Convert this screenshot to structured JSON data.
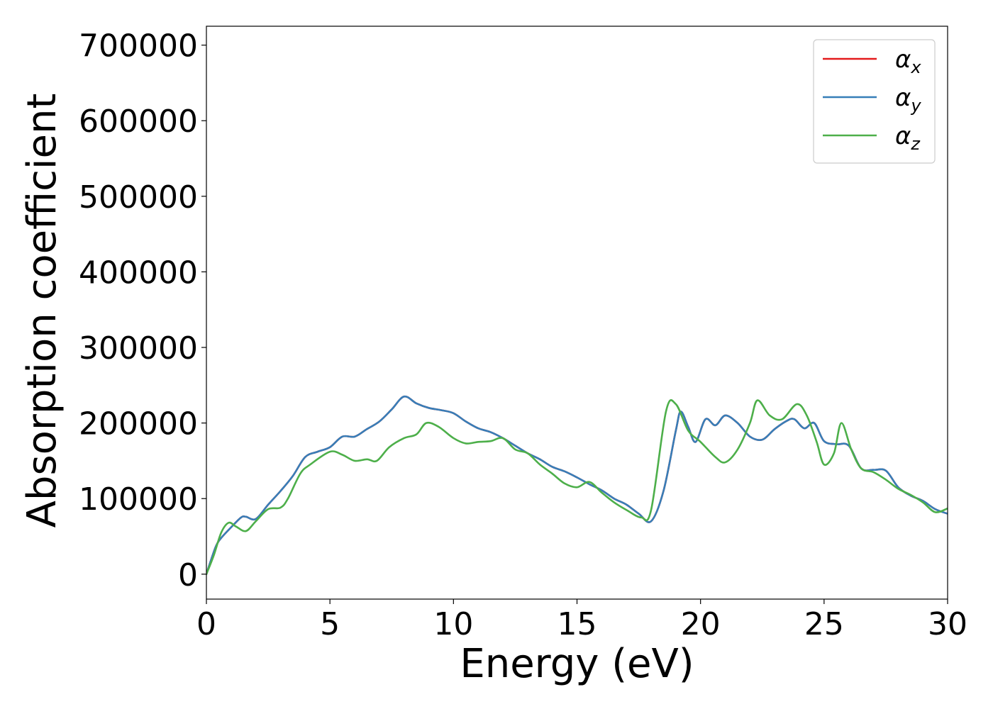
{
  "chart_data": {
    "type": "line",
    "xlabel": "Energy (eV)",
    "ylabel": "Absorption coefficient",
    "xlim": [
      0,
      30
    ],
    "ylim": [
      -33000,
      725000
    ],
    "xticks": [
      0,
      5,
      10,
      15,
      20,
      25,
      30
    ],
    "yticks": [
      0,
      100000,
      200000,
      300000,
      400000,
      500000,
      600000,
      700000
    ],
    "grid": false,
    "legend_position": "top-right",
    "series": [
      {
        "name": "α",
        "subscript": "x",
        "color": "#e41a1c",
        "x": [
          0,
          0.2,
          0.4,
          0.6,
          1.0,
          1.4,
          1.6,
          2.0,
          2.5,
          3.0,
          3.5,
          4.0,
          4.5,
          5.0,
          5.5,
          6.0,
          6.5,
          7.0,
          7.5,
          8.0,
          8.5,
          9.0,
          9.5,
          10.0,
          10.5,
          11.0,
          11.5,
          12.0,
          12.5,
          13.0,
          13.5,
          14.0,
          14.5,
          15.0,
          15.5,
          16.0,
          16.5,
          17.0,
          17.5,
          18.0,
          18.5,
          19.0,
          19.2,
          19.5,
          19.8,
          20.2,
          20.6,
          21.0,
          21.5,
          22.0,
          22.5,
          23.0,
          23.5,
          23.8,
          24.2,
          24.6,
          25.0,
          25.5,
          26.0,
          26.5,
          27.0,
          27.5,
          28.0,
          28.5,
          29.0,
          29.5,
          30.0
        ],
        "y": [
          0,
          20000,
          38000,
          48000,
          62000,
          75000,
          76000,
          73000,
          92000,
          110000,
          130000,
          155000,
          162000,
          168000,
          182000,
          182000,
          192000,
          202000,
          218000,
          235000,
          226000,
          220000,
          217000,
          213000,
          202000,
          193000,
          188000,
          180000,
          170000,
          160000,
          152000,
          142000,
          136000,
          128000,
          119000,
          111000,
          100000,
          92000,
          80000,
          70000,
          110000,
          190000,
          215000,
          195000,
          175000,
          205000,
          197000,
          210000,
          200000,
          182000,
          178000,
          192000,
          203000,
          205000,
          193000,
          200000,
          176000,
          172000,
          170000,
          140000,
          138000,
          137000,
          115000,
          104000,
          97000,
          86000,
          80000
        ]
      },
      {
        "name": "α",
        "subscript": "y",
        "color": "#377eb8",
        "x": [
          0,
          0.2,
          0.4,
          0.6,
          1.0,
          1.4,
          1.6,
          2.0,
          2.5,
          3.0,
          3.5,
          4.0,
          4.5,
          5.0,
          5.5,
          6.0,
          6.5,
          7.0,
          7.5,
          8.0,
          8.5,
          9.0,
          9.5,
          10.0,
          10.5,
          11.0,
          11.5,
          12.0,
          12.5,
          13.0,
          13.5,
          14.0,
          14.5,
          15.0,
          15.5,
          16.0,
          16.5,
          17.0,
          17.5,
          18.0,
          18.5,
          19.0,
          19.2,
          19.5,
          19.8,
          20.2,
          20.6,
          21.0,
          21.5,
          22.0,
          22.5,
          23.0,
          23.5,
          23.8,
          24.2,
          24.6,
          25.0,
          25.5,
          26.0,
          26.5,
          27.0,
          27.5,
          28.0,
          28.5,
          29.0,
          29.5,
          30.0
        ],
        "y": [
          0,
          20000,
          38000,
          48000,
          62000,
          75000,
          76000,
          73000,
          92000,
          110000,
          130000,
          155000,
          162000,
          168000,
          182000,
          182000,
          192000,
          202000,
          218000,
          235000,
          226000,
          220000,
          217000,
          213000,
          202000,
          193000,
          188000,
          180000,
          170000,
          160000,
          152000,
          142000,
          136000,
          128000,
          119000,
          111000,
          100000,
          92000,
          80000,
          70000,
          110000,
          190000,
          215000,
          195000,
          175000,
          205000,
          197000,
          210000,
          200000,
          182000,
          178000,
          192000,
          203000,
          205000,
          193000,
          200000,
          176000,
          172000,
          170000,
          140000,
          138000,
          137000,
          115000,
          104000,
          97000,
          86000,
          80000
        ]
      },
      {
        "name": "α",
        "subscript": "z",
        "color": "#4daf4a",
        "x": [
          0,
          0.3,
          0.6,
          0.9,
          1.2,
          1.6,
          2.0,
          2.5,
          3.0,
          3.3,
          3.8,
          4.2,
          5.0,
          5.5,
          6.0,
          6.5,
          6.9,
          7.4,
          8.0,
          8.5,
          8.9,
          9.4,
          10.0,
          10.5,
          11.0,
          11.5,
          12.0,
          12.5,
          13.0,
          13.5,
          14.0,
          14.5,
          15.0,
          15.5,
          16.0,
          16.5,
          17.0,
          17.6,
          18.0,
          18.6,
          19.0,
          19.5,
          20.0,
          20.6,
          21.0,
          21.5,
          22.0,
          22.3,
          22.8,
          23.3,
          23.9,
          24.3,
          24.7,
          25.0,
          25.4,
          25.7,
          26.1,
          26.5,
          27.0,
          27.5,
          28.0,
          28.5,
          29.0,
          29.5,
          30.0
        ],
        "y": [
          0,
          25000,
          55000,
          68000,
          63000,
          57000,
          70000,
          86000,
          88000,
          100000,
          133000,
          145000,
          162000,
          158000,
          150000,
          152000,
          150000,
          168000,
          180000,
          185000,
          200000,
          195000,
          180000,
          173000,
          175000,
          176000,
          180000,
          165000,
          160000,
          145000,
          133000,
          120000,
          115000,
          122000,
          108000,
          95000,
          85000,
          75000,
          85000,
          215000,
          225000,
          190000,
          175000,
          155000,
          148000,
          165000,
          200000,
          230000,
          210000,
          205000,
          225000,
          210000,
          175000,
          145000,
          160000,
          200000,
          165000,
          140000,
          135000,
          125000,
          113000,
          105000,
          95000,
          82000,
          87000
        ]
      }
    ]
  }
}
